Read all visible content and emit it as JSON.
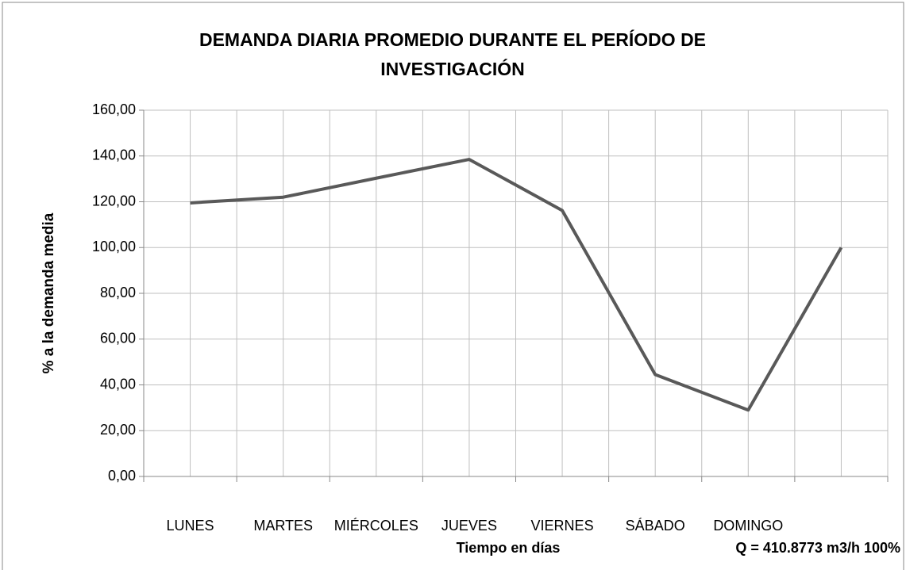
{
  "chart_data": {
    "type": "line",
    "title": "DEMANDA DIARIA PROMEDIO DURANTE EL PERÍODO DE INVESTIGACIÓN",
    "y_label": "% a la demanda media",
    "x_label": "Tiempo en días",
    "annotation": "Q = 410.8773 m3/h  100%",
    "categories": [
      "LUNES",
      "MARTES",
      "MIÉRCOLES",
      "JUEVES",
      "VIERNES",
      "SÁBADO",
      "DOMINGO",
      null
    ],
    "series": [
      {
        "name": "Demanda",
        "color": "#595959",
        "values": [
          119.5,
          122,
          130.3,
          138.5,
          116.2,
          44.5,
          29,
          100
        ]
      }
    ],
    "ylim": [
      0,
      160
    ],
    "yticks": [
      {
        "value": 0,
        "label": "0,00"
      },
      {
        "value": 20,
        "label": "20,00"
      },
      {
        "value": 40,
        "label": "40,00"
      },
      {
        "value": 60,
        "label": "60,00"
      },
      {
        "value": 80,
        "label": "80,00"
      },
      {
        "value": 100,
        "label": "100,00"
      },
      {
        "value": 120,
        "label": "120,00"
      },
      {
        "value": 140,
        "label": "140,00"
      },
      {
        "value": 160,
        "label": "160,00"
      }
    ],
    "grid": true
  }
}
